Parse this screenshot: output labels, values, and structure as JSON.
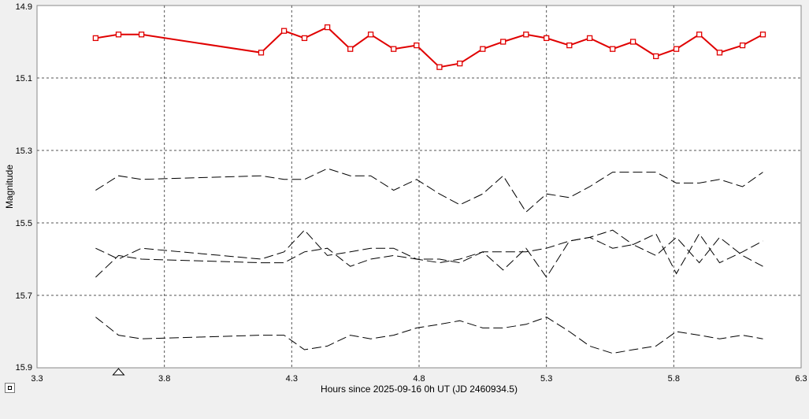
{
  "chart_data": {
    "type": "line",
    "xlabel": "Hours since 2025-09-16 0h UT (JD 2460934.5)",
    "ylabel": "Magnitude",
    "xlim": [
      3.3,
      6.3
    ],
    "ylim": [
      14.9,
      15.9
    ],
    "y_inverted": true,
    "grid": true,
    "x_ticks": [
      "3.3",
      "3.8",
      "4.3",
      "4.8",
      "5.3",
      "5.8",
      "6.3"
    ],
    "y_ticks": [
      "14.9",
      "15.1",
      "15.3",
      "15.5",
      "15.7",
      "15.9"
    ],
    "marker_x": 3.62,
    "series": [
      {
        "color": "#e00000",
        "style": "solid-square-markers",
        "x": [
          3.53,
          3.62,
          3.71,
          4.18,
          4.27,
          4.35,
          4.44,
          4.53,
          4.61,
          4.7,
          4.79,
          4.88,
          4.96,
          5.05,
          5.13,
          5.22,
          5.3,
          5.39,
          5.47,
          5.56,
          5.64,
          5.73,
          5.81,
          5.9,
          5.98,
          6.07,
          6.15
        ],
        "y": [
          14.99,
          14.98,
          14.98,
          15.03,
          14.97,
          14.99,
          14.96,
          15.02,
          14.98,
          15.02,
          15.01,
          15.07,
          15.06,
          15.02,
          15.0,
          14.98,
          14.99,
          15.01,
          14.99,
          15.02,
          15.0,
          15.04,
          15.02,
          14.98,
          15.03,
          15.01,
          14.98
        ]
      },
      {
        "color": "#000000",
        "style": "dashed",
        "x": [
          3.53,
          3.62,
          3.71,
          4.18,
          4.27,
          4.35,
          4.44,
          4.53,
          4.61,
          4.7,
          4.79,
          4.88,
          4.96,
          5.05,
          5.13,
          5.22,
          5.3,
          5.39,
          5.47,
          5.56,
          5.64,
          5.73,
          5.81,
          5.9,
          5.98,
          6.07,
          6.15
        ],
        "y": [
          15.41,
          15.37,
          15.38,
          15.37,
          15.38,
          15.38,
          15.35,
          15.37,
          15.37,
          15.41,
          15.38,
          15.42,
          15.45,
          15.42,
          15.37,
          15.47,
          15.42,
          15.43,
          15.4,
          15.36,
          15.36,
          15.36,
          15.39,
          15.39,
          15.38,
          15.4,
          15.36
        ]
      },
      {
        "color": "#000000",
        "style": "dashed",
        "x": [
          3.53,
          3.62,
          3.71,
          4.18,
          4.27,
          4.35,
          4.44,
          4.53,
          4.61,
          4.7,
          4.79,
          4.88,
          4.96,
          5.05,
          5.13,
          5.22,
          5.3,
          5.39,
          5.47,
          5.56,
          5.64,
          5.73,
          5.81,
          5.9,
          5.98,
          6.07,
          6.15
        ],
        "y": [
          15.57,
          15.6,
          15.57,
          15.6,
          15.58,
          15.52,
          15.59,
          15.58,
          15.57,
          15.57,
          15.6,
          15.61,
          15.6,
          15.58,
          15.58,
          15.58,
          15.57,
          15.55,
          15.54,
          15.52,
          15.56,
          15.53,
          15.64,
          15.53,
          15.61,
          15.58,
          15.55
        ]
      },
      {
        "color": "#000000",
        "style": "dashed",
        "x": [
          3.53,
          3.62,
          3.71,
          4.18,
          4.27,
          4.35,
          4.44,
          4.53,
          4.61,
          4.7,
          4.79,
          4.88,
          4.96,
          5.05,
          5.13,
          5.22,
          5.3,
          5.39,
          5.47,
          5.56,
          5.64,
          5.73,
          5.81,
          5.9,
          5.98,
          6.07,
          6.15
        ],
        "y": [
          15.65,
          15.59,
          15.6,
          15.61,
          15.61,
          15.58,
          15.57,
          15.62,
          15.6,
          15.59,
          15.6,
          15.6,
          15.61,
          15.58,
          15.63,
          15.57,
          15.65,
          15.55,
          15.54,
          15.57,
          15.56,
          15.59,
          15.54,
          15.61,
          15.54,
          15.59,
          15.62
        ]
      },
      {
        "color": "#000000",
        "style": "dashed",
        "x": [
          3.53,
          3.62,
          3.71,
          4.18,
          4.27,
          4.35,
          4.44,
          4.53,
          4.61,
          4.7,
          4.79,
          4.88,
          4.96,
          5.05,
          5.13,
          5.22,
          5.3,
          5.39,
          5.47,
          5.56,
          5.64,
          5.73,
          5.81,
          5.9,
          5.98,
          6.07,
          6.15
        ],
        "y": [
          15.76,
          15.81,
          15.82,
          15.81,
          15.81,
          15.85,
          15.84,
          15.81,
          15.82,
          15.81,
          15.79,
          15.78,
          15.77,
          15.79,
          15.79,
          15.78,
          15.76,
          15.8,
          15.84,
          15.86,
          15.85,
          15.84,
          15.8,
          15.81,
          15.82,
          15.81,
          15.82
        ]
      }
    ]
  }
}
